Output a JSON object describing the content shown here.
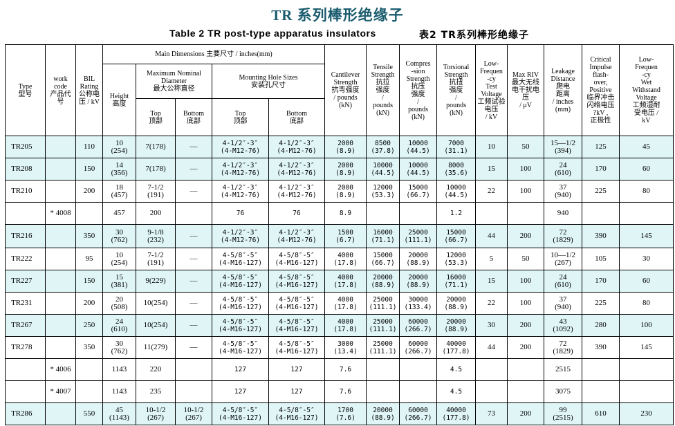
{
  "title": "TR 系列棒形绝缘子",
  "subtitle_en": "Table 2   TR post-type apparatus insulators",
  "subtitle_cn": "表2  TR系列棒形绝缘子",
  "headers": {
    "type": "Type\n型号",
    "work_code": "work\ncode\n产品代\n号",
    "bil": "BIL\nRating\n公称电\n压 / kV",
    "main_dimensions": "Main Dimensions   主要尺寸 / inches(mm)",
    "max_nominal_diameter": "Maximum Nominal\nDiameter\n最大公称直径",
    "mounting_hole_sizes": "Mounting Hole Sizes\n安装孔尺寸",
    "height": "Height\n高度",
    "top": "Top\n顶部",
    "bottom": "Bottom\n底部",
    "cantilever": "Cantilever\nStrength\n抗弯强度\n/ pounds\n(kN)",
    "tensile": "Tensile\nStrength\n抗拉\n强度\n/\npounds\n(kN)",
    "compression": "Compres\n-sion\nStrength\n抗压\n强度\n/\npounds\n(kN)",
    "torsional": "Torsional\nStrength\n抗扭\n强度\n/\npounds\n(kN)",
    "low_freq_test": "Low-\nFrequen\n-cy\nTest\nVoltage\n工频试验\n电压\n/ kV",
    "max_riv": "Max RIV\n最大无线\n电干扰电\n压\n/ μV",
    "leakage": "Leakage\nDistance\n爬电\n距离\n/ inches\n(mm)",
    "critical_impulse": "Critical\nImpulse\nflash-\nover,\nPositive\n临界冲击\n闪络电压\n?kV ,\n正极性",
    "low_freq_wet": "Low-\nFrequen\n-cy\nWet\nWithstand\nVoltage\n工频湿耐\n受电压 /\nkV"
  },
  "rows": [
    {
      "type": "TR205",
      "code": "",
      "bil": "110",
      "height": "10\n(254)",
      "dtop": "7(178)",
      "dbot": "—",
      "mtop": "4-1/2″-3″\n(4-M12-76)",
      "mbot": "4-1/2″-3″\n(4-M12-76)",
      "cant": "2000\n(8.9)",
      "tens": "8500\n(37.8)",
      "comp": "10000\n(44.5)",
      "tors": "7000\n(31.1)",
      "lf": "10",
      "riv": "50",
      "leak": "15—1/2\n(394)",
      "imp": "125",
      "wet": "45",
      "shade": "cyan"
    },
    {
      "type": "TR208",
      "code": "",
      "bil": "150",
      "height": "14\n(356)",
      "dtop": "7(178)",
      "dbot": "—",
      "mtop": "4-1/2″-3″\n(4-M12-76)",
      "mbot": "4-1/2″-3″\n(4-M12-76)",
      "cant": "2000\n(8.9)",
      "tens": "10000\n(44.5)",
      "comp": "10000\n(44.5)",
      "tors": "8000\n(35.6)",
      "lf": "15",
      "riv": "100",
      "leak": "24\n(610)",
      "imp": "170",
      "wet": "60",
      "shade": "cyan"
    },
    {
      "type": "TR210",
      "code": "",
      "bil": "200",
      "height": "18\n(457)",
      "dtop": "7-1/2\n(191)",
      "dbot": "—",
      "mtop": "4-1/2″-3″\n(4-M12-76)",
      "mbot": "4-1/2″-3″\n(4-M12-76)",
      "cant": "2000\n(8.9)",
      "tens": "12000\n(53.3)",
      "comp": "15000\n(66.7)",
      "tors": "10000\n(44.5)",
      "lf": "22",
      "riv": "100",
      "leak": "37\n(940)",
      "imp": "225",
      "wet": "80",
      "shade": "white"
    },
    {
      "type": "",
      "code": "* 4008",
      "bil": "",
      "height": "457",
      "dtop": "200",
      "dbot": "",
      "mtop": "76",
      "mbot": "76",
      "cant": "8.9",
      "tens": "",
      "comp": "",
      "tors": "1.2",
      "lf": "",
      "riv": "",
      "leak": "940",
      "imp": "",
      "wet": "",
      "shade": "white"
    },
    {
      "type": "TR216",
      "code": "",
      "bil": "350",
      "height": "30\n(762)",
      "dtop": "9-1/8\n(232)",
      "dbot": "—",
      "mtop": "4-1/2″-3″\n(4-M12-76)",
      "mbot": "4-1/2″-3″\n(4-M12-76)",
      "cant": "1500\n(6.7)",
      "tens": "16000\n(71.1)",
      "comp": "25000\n(111.1)",
      "tors": "15000\n(66.7)",
      "lf": "44",
      "riv": "200",
      "leak": "72\n(1829)",
      "imp": "390",
      "wet": "145",
      "shade": "cyan"
    },
    {
      "type": "TR222",
      "code": "",
      "bil": "95",
      "height": "10\n(254)",
      "dtop": "7-1/2\n(191)",
      "dbot": "—",
      "mtop": "4-5/8″-5″\n(4-M16-127)",
      "mbot": "4-5/8″-5″\n(4-M16-127)",
      "cant": "4000\n(17.8)",
      "tens": "15000\n(66.7)",
      "comp": "20000\n(88.9)",
      "tors": "12000\n(53.3)",
      "lf": "5",
      "riv": "50",
      "leak": "10—1/2\n(267)",
      "imp": "105",
      "wet": "30",
      "shade": "white"
    },
    {
      "type": "TR227",
      "code": "",
      "bil": "150",
      "height": "15\n(381)",
      "dtop": "9(229)",
      "dbot": "—",
      "mtop": "4-5/8″-5″\n(4-M16-127)",
      "mbot": "4-5/8″-5″\n(4-M16-127)",
      "cant": "4000\n(17.8)",
      "tens": "20000\n(88.9)",
      "comp": "20000\n(88.9)",
      "tors": "16000\n(71.1)",
      "lf": "15",
      "riv": "100",
      "leak": "24\n(610)",
      "imp": "170",
      "wet": "60",
      "shade": "cyan"
    },
    {
      "type": "TR231",
      "code": "",
      "bil": "200",
      "height": "20\n(508)",
      "dtop": "10(254)",
      "dbot": "—",
      "mtop": "4-5/8″-5″\n(4-M16-127)",
      "mbot": "4-5/8″-5″\n(4-M16-127)",
      "cant": "4000\n(17.8)",
      "tens": "25000\n(111.1)",
      "comp": "30000\n(133.4)",
      "tors": "20000\n(88.9)",
      "lf": "22",
      "riv": "100",
      "leak": "37\n(940)",
      "imp": "225",
      "wet": "80",
      "shade": "white"
    },
    {
      "type": "TR267",
      "code": "",
      "bil": "250",
      "height": "24\n(610)",
      "dtop": "10(254)",
      "dbot": "—",
      "mtop": "4-5/8″-5″\n(4-M16-127)",
      "mbot": "4-5/8″-5″\n(4-M16-127)",
      "cant": "4000\n(17.8)",
      "tens": "25000\n(111.1)",
      "comp": "60000\n(266.7)",
      "tors": "20000\n(88.9)",
      "lf": "30",
      "riv": "200",
      "leak": "43\n(1092)",
      "imp": "280",
      "wet": "100",
      "shade": "cyan"
    },
    {
      "type": "TR278",
      "code": "",
      "bil": "350",
      "height": "30\n(762)",
      "dtop": "11(279)",
      "dbot": "—",
      "mtop": "4-5/8″-5″\n(4-M16-127)",
      "mbot": "4-5/8″-5″\n(4-M16-127)",
      "cant": "3000\n(13.4)",
      "tens": "25000\n(111.1)",
      "comp": "60000\n(266.7)",
      "tors": "40000\n(177.8)",
      "lf": "44",
      "riv": "200",
      "leak": "72\n(1829)",
      "imp": "390",
      "wet": "145",
      "shade": "white"
    },
    {
      "type": "",
      "code": "* 4006",
      "bil": "",
      "height": "1143",
      "dtop": "220",
      "dbot": "",
      "mtop": "127",
      "mbot": "127",
      "cant": "7.6",
      "tens": "",
      "comp": "",
      "tors": "4.5",
      "lf": "",
      "riv": "",
      "leak": "2515",
      "imp": "",
      "wet": "",
      "shade": "white"
    },
    {
      "type": "",
      "code": "* 4007",
      "bil": "",
      "height": "1143",
      "dtop": "235",
      "dbot": "",
      "mtop": "127",
      "mbot": "127",
      "cant": "7.6",
      "tens": "",
      "comp": "",
      "tors": "4.5",
      "lf": "",
      "riv": "",
      "leak": "3075",
      "imp": "",
      "wet": "",
      "shade": "white"
    },
    {
      "type": "TR286",
      "code": "",
      "bil": "550",
      "height": "45\n(1143)",
      "dtop": "10-1/2\n(267)",
      "dbot": "10-1/2\n(267)",
      "mtop": "4-5/8″-5″\n(4-M16-127)",
      "mbot": "4-5/8″-5″\n(4-M16-127)",
      "cant": "1700\n(7.6)",
      "tens": "20000\n(88.9)",
      "comp": "60000\n(266.7)",
      "tors": "40000\n(177.8)",
      "lf": "73",
      "riv": "200",
      "leak": "99\n(2515)",
      "imp": "610",
      "wet": "230",
      "shade": "cyan"
    }
  ]
}
